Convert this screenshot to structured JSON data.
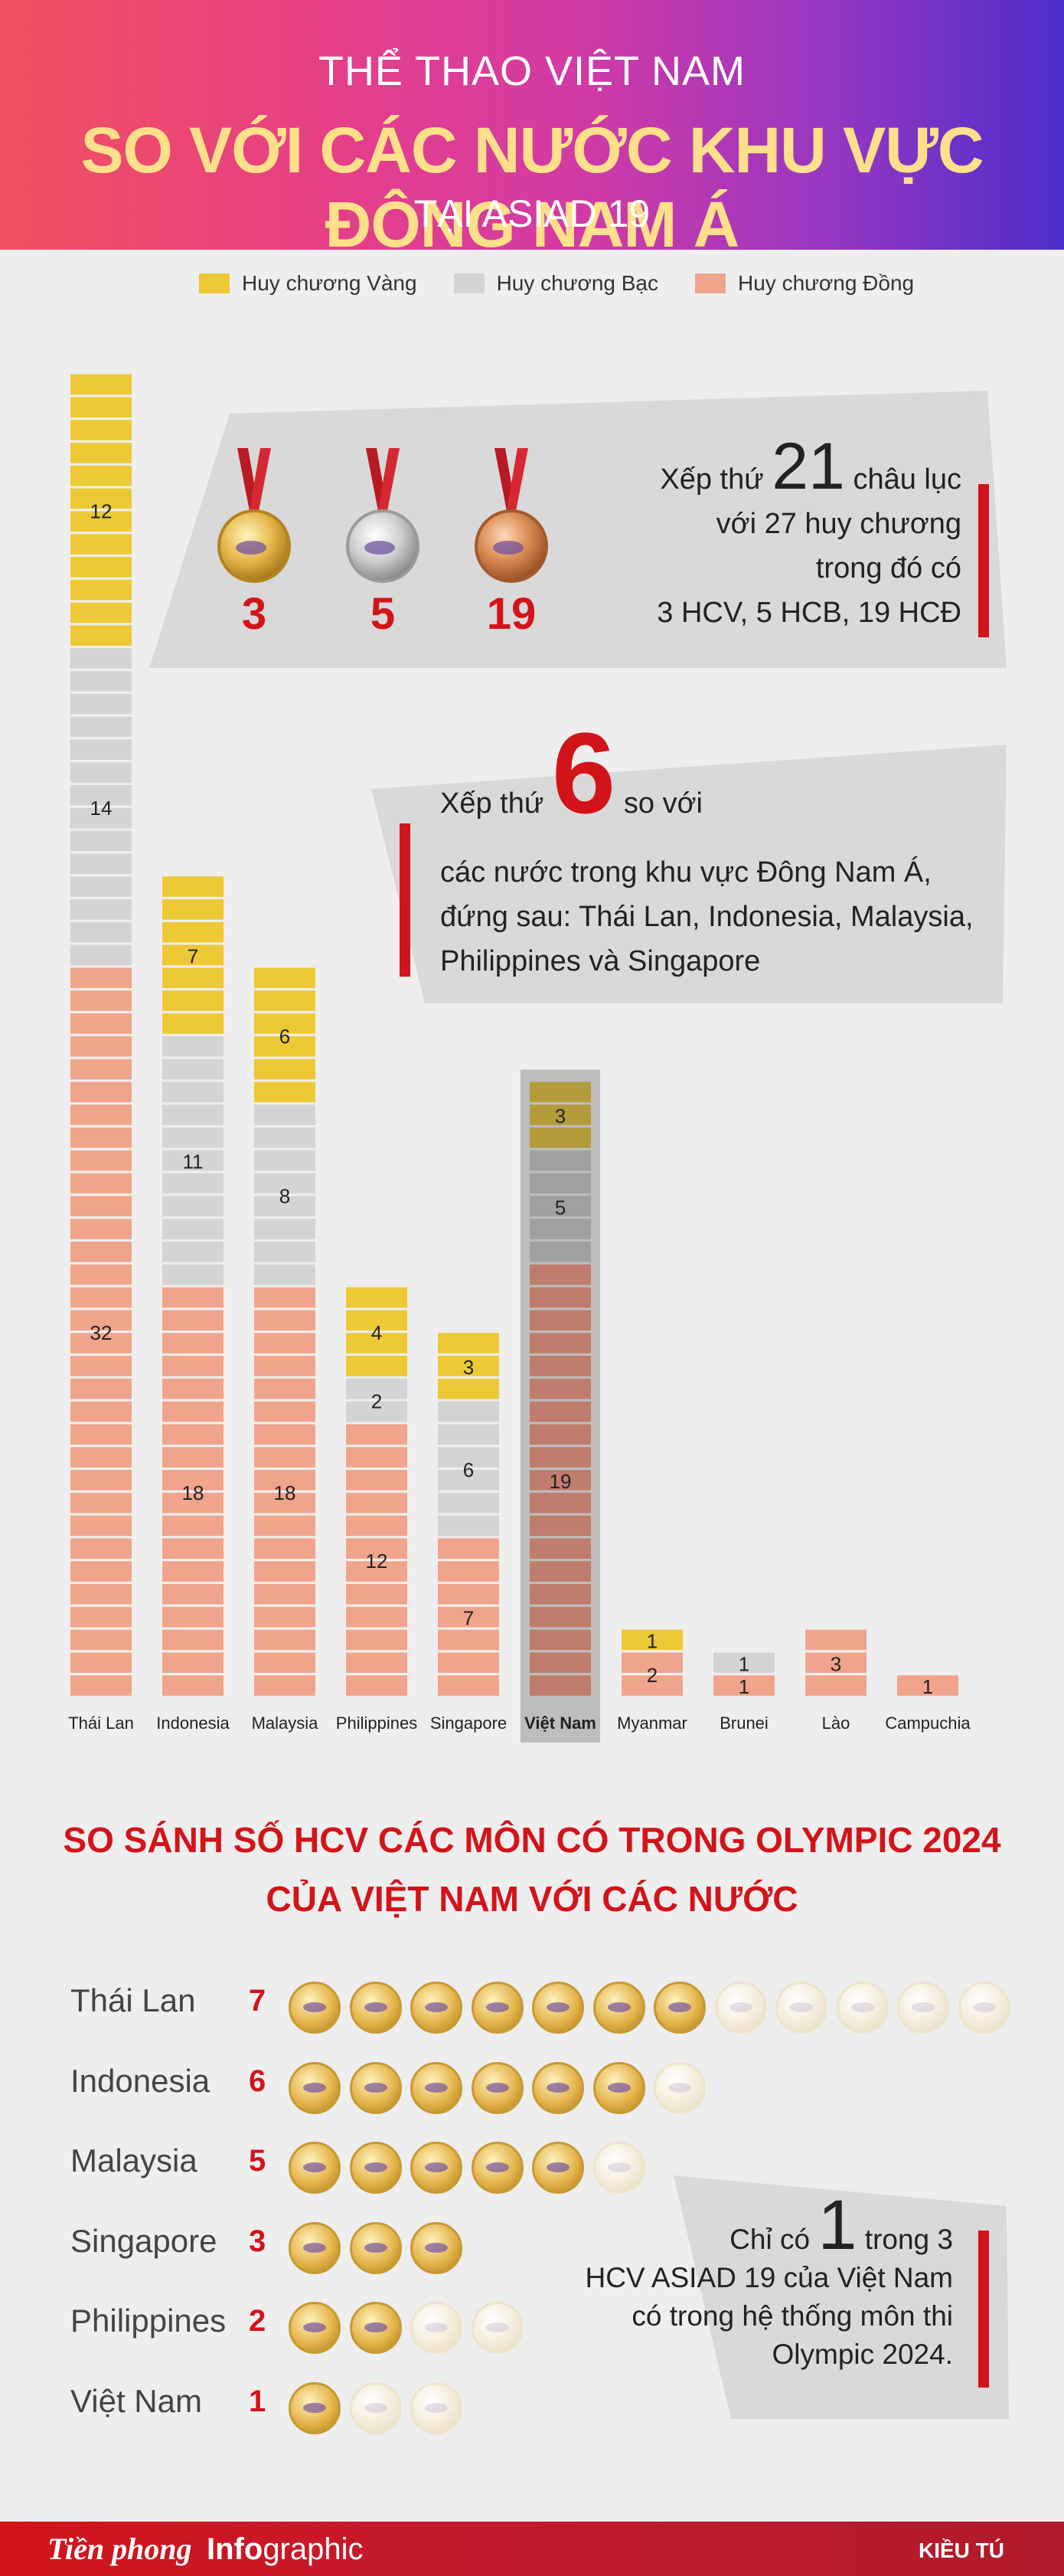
{
  "header": {
    "line1": "THỂ THAO VIỆT NAM",
    "line2": "SO VỚI CÁC NƯỚC KHU VỰC ĐÔNG NAM Á",
    "line3": "TẠI ASIAD 19"
  },
  "legend": [
    {
      "label": "Huy chương Vàng",
      "color": "#ecc935"
    },
    {
      "label": "Huy chương Bạc",
      "color": "#d4d4d4"
    },
    {
      "label": "Huy chương Đồng",
      "color": "#f0a48c"
    }
  ],
  "medal_summary": {
    "gold": "3",
    "silver": "5",
    "bronze": "19",
    "rank_prefix": "Xếp thứ",
    "rank": "21",
    "rank_suffix": "châu lục",
    "line2": "với 27 huy chương",
    "line3": "trong đó có",
    "line4": "3 HCV, 5 HCB, 19 HCĐ"
  },
  "sea_rank": {
    "prefix": "Xếp thứ",
    "rank": "6",
    "suffix": "so với",
    "line2": "các nước trong khu vực Đông Nam Á,",
    "line3": "đứng sau: Thái Lan, Indonesia, Malaysia,",
    "line4": "Philippines và Singapore"
  },
  "chart_data": [
    {
      "type": "bar",
      "stacked": true,
      "categories": [
        "Thái Lan",
        "Indonesia",
        "Malaysia",
        "Philippines",
        "Singapore",
        "Việt Nam",
        "Myanmar",
        "Brunei",
        "Lào",
        "Campuchia"
      ],
      "series": [
        {
          "name": "Huy chương Vàng",
          "values": [
            12,
            7,
            6,
            4,
            3,
            3,
            1,
            0,
            0,
            0
          ]
        },
        {
          "name": "Huy chương Bạc",
          "values": [
            14,
            11,
            8,
            2,
            6,
            5,
            0,
            1,
            0,
            0
          ]
        },
        {
          "name": "Huy chương Đồng",
          "values": [
            32,
            18,
            18,
            12,
            7,
            19,
            2,
            1,
            3,
            1
          ]
        }
      ],
      "highlight": "Việt Nam",
      "colors": {
        "gold": "#ecc935",
        "silver": "#d4d4d4",
        "bronze": "#f0a48c",
        "gold_hl": "#b49c3c",
        "silver_hl": "#a0a0a0",
        "bronze_hl": "#c07c6c",
        "hl_bg": "#bdbdbd"
      }
    },
    {
      "type": "table",
      "title": "SO SÁNH SỐ HCV CÁC MÔN CÓ TRONG OLYMPIC 2024",
      "subtitle": "CỦA VIỆT NAM VỚI CÁC NƯỚC",
      "categories": [
        "Thái Lan",
        "Indonesia",
        "Malaysia",
        "Singapore",
        "Philippines",
        "Việt Nam"
      ],
      "values": [
        7,
        6,
        5,
        3,
        2,
        1
      ],
      "total_gold_asiad": [
        12,
        7,
        6,
        3,
        4,
        3
      ]
    }
  ],
  "olympic_note": {
    "prefix": "Chỉ có",
    "num": "1",
    "suffix": "trong 3",
    "line2": "HCV ASIAD 19 của Việt Nam",
    "line3": "có trong hệ thống môn thi",
    "line4": "Olympic 2024."
  },
  "footer": {
    "brand": "Tiền phong",
    "section_a": "Info",
    "section_b": "graphic",
    "author": "KIỀU TÚ"
  }
}
